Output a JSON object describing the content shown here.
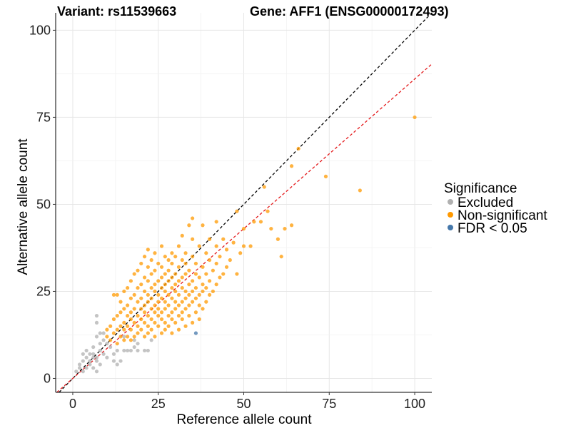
{
  "titles": {
    "left": "Variant: rs11539663",
    "right": "Gene: AFF1 (ENSG00000172493)"
  },
  "legend": {
    "title": "Significance",
    "items": [
      {
        "label": "Excluded",
        "color": "#b0b0b0"
      },
      {
        "label": "Non-significant",
        "color": "#ff9900"
      },
      {
        "label": "FDR < 0.05",
        "color": "#4477aa"
      }
    ]
  },
  "chart_data": {
    "type": "scatter",
    "xlabel": "Reference allele count",
    "ylabel": "Alternative allele count",
    "xlim": [
      -5,
      105
    ],
    "ylim": [
      -4,
      105
    ],
    "xticks": [
      0,
      25,
      50,
      75,
      100
    ],
    "yticks": [
      0,
      25,
      50,
      75,
      100
    ],
    "grid": true,
    "legend_position": "right",
    "reference_lines": [
      {
        "name": "",
        "slope": 1,
        "intercept": 0,
        "color": "#000000",
        "dash": "dashed"
      },
      {
        "name": "",
        "slope": 0.86,
        "intercept": 0,
        "color": "#e41a1c",
        "dash": "dashed"
      }
    ],
    "series": [
      {
        "name": "Excluded",
        "color": "#b0b0b0",
        "points": [
          [
            1,
            2
          ],
          [
            2,
            3
          ],
          [
            2,
            4
          ],
          [
            3,
            2
          ],
          [
            3,
            5
          ],
          [
            3,
            7
          ],
          [
            4,
            3
          ],
          [
            4,
            6
          ],
          [
            4,
            8
          ],
          [
            5,
            4
          ],
          [
            5,
            5
          ],
          [
            5,
            7
          ],
          [
            6,
            3
          ],
          [
            6,
            6
          ],
          [
            6,
            7
          ],
          [
            6,
            9
          ],
          [
            7,
            2
          ],
          [
            7,
            5
          ],
          [
            7,
            6
          ],
          [
            7,
            12
          ],
          [
            7,
            16
          ],
          [
            7,
            18
          ],
          [
            8,
            4
          ],
          [
            8,
            8
          ],
          [
            8,
            10
          ],
          [
            8,
            13
          ],
          [
            9,
            7
          ],
          [
            9,
            11
          ],
          [
            9,
            13
          ],
          [
            10,
            6
          ],
          [
            10,
            10
          ],
          [
            11,
            9
          ],
          [
            12,
            5
          ],
          [
            12,
            7
          ],
          [
            13,
            4
          ],
          [
            13,
            8
          ],
          [
            14,
            5
          ],
          [
            15,
            8
          ],
          [
            15,
            12
          ],
          [
            16,
            8
          ],
          [
            17,
            8
          ],
          [
            18,
            9
          ],
          [
            18,
            11
          ],
          [
            19,
            8
          ],
          [
            19,
            10
          ],
          [
            21,
            8
          ],
          [
            22,
            8
          ],
          [
            23,
            11
          ]
        ]
      },
      {
        "name": "Non-significant",
        "color": "#ff9900",
        "points": [
          [
            10,
            12
          ],
          [
            10,
            14
          ],
          [
            11,
            11
          ],
          [
            11,
            15
          ],
          [
            12,
            13
          ],
          [
            12,
            17
          ],
          [
            12,
            24
          ],
          [
            13,
            10
          ],
          [
            13,
            14
          ],
          [
            13,
            18
          ],
          [
            13,
            24
          ],
          [
            14,
            12
          ],
          [
            14,
            15
          ],
          [
            14,
            19
          ],
          [
            14,
            22
          ],
          [
            15,
            11
          ],
          [
            15,
            14
          ],
          [
            15,
            16
          ],
          [
            15,
            20
          ],
          [
            15,
            25
          ],
          [
            16,
            12
          ],
          [
            16,
            15
          ],
          [
            16,
            18
          ],
          [
            16,
            21
          ],
          [
            16,
            26
          ],
          [
            17,
            11
          ],
          [
            17,
            14
          ],
          [
            17,
            17
          ],
          [
            17,
            19
          ],
          [
            17,
            23
          ],
          [
            17,
            28
          ],
          [
            18,
            12
          ],
          [
            18,
            16
          ],
          [
            18,
            20
          ],
          [
            18,
            24
          ],
          [
            18,
            30
          ],
          [
            19,
            13
          ],
          [
            19,
            15
          ],
          [
            19,
            18
          ],
          [
            19,
            22
          ],
          [
            19,
            26
          ],
          [
            19,
            31
          ],
          [
            20,
            14
          ],
          [
            20,
            17
          ],
          [
            20,
            20
          ],
          [
            20,
            23
          ],
          [
            20,
            27
          ],
          [
            20,
            33
          ],
          [
            21,
            12
          ],
          [
            21,
            16
          ],
          [
            21,
            19
          ],
          [
            21,
            21
          ],
          [
            21,
            25
          ],
          [
            21,
            29
          ],
          [
            21,
            35
          ],
          [
            22,
            13
          ],
          [
            22,
            15
          ],
          [
            22,
            18
          ],
          [
            22,
            22
          ],
          [
            22,
            24
          ],
          [
            22,
            28
          ],
          [
            22,
            32
          ],
          [
            22,
            37
          ],
          [
            23,
            14
          ],
          [
            23,
            17
          ],
          [
            23,
            20
          ],
          [
            23,
            23
          ],
          [
            23,
            26
          ],
          [
            23,
            30
          ],
          [
            23,
            34
          ],
          [
            24,
            12
          ],
          [
            24,
            16
          ],
          [
            24,
            19
          ],
          [
            24,
            21
          ],
          [
            24,
            25
          ],
          [
            24,
            27
          ],
          [
            24,
            31
          ],
          [
            24,
            36
          ],
          [
            25,
            15
          ],
          [
            25,
            18
          ],
          [
            25,
            20
          ],
          [
            25,
            22
          ],
          [
            25,
            24
          ],
          [
            25,
            28
          ],
          [
            25,
            33
          ],
          [
            26,
            13
          ],
          [
            26,
            17
          ],
          [
            26,
            19
          ],
          [
            26,
            23
          ],
          [
            26,
            26
          ],
          [
            26,
            29
          ],
          [
            26,
            32
          ],
          [
            26,
            38
          ],
          [
            27,
            14
          ],
          [
            27,
            16
          ],
          [
            27,
            20
          ],
          [
            27,
            22
          ],
          [
            27,
            25
          ],
          [
            27,
            27
          ],
          [
            27,
            30
          ],
          [
            27,
            35
          ],
          [
            28,
            15
          ],
          [
            28,
            18
          ],
          [
            28,
            21
          ],
          [
            28,
            24
          ],
          [
            28,
            28
          ],
          [
            28,
            31
          ],
          [
            28,
            34
          ],
          [
            29,
            13
          ],
          [
            29,
            17
          ],
          [
            29,
            19
          ],
          [
            29,
            23
          ],
          [
            29,
            26
          ],
          [
            29,
            29
          ],
          [
            29,
            33
          ],
          [
            29,
            36
          ],
          [
            30,
            16
          ],
          [
            30,
            20
          ],
          [
            30,
            22
          ],
          [
            30,
            25
          ],
          [
            30,
            27
          ],
          [
            30,
            30
          ],
          [
            30,
            35
          ],
          [
            31,
            14
          ],
          [
            31,
            18
          ],
          [
            31,
            21
          ],
          [
            31,
            24
          ],
          [
            31,
            28
          ],
          [
            31,
            32
          ],
          [
            31,
            38
          ],
          [
            32,
            17
          ],
          [
            32,
            19
          ],
          [
            32,
            22
          ],
          [
            32,
            26
          ],
          [
            32,
            29
          ],
          [
            32,
            34
          ],
          [
            32,
            41
          ],
          [
            33,
            15
          ],
          [
            33,
            20
          ],
          [
            33,
            23
          ],
          [
            33,
            25
          ],
          [
            33,
            30
          ],
          [
            33,
            33
          ],
          [
            33,
            36
          ],
          [
            34,
            18
          ],
          [
            34,
            21
          ],
          [
            34,
            24
          ],
          [
            34,
            27
          ],
          [
            34,
            31
          ],
          [
            34,
            44
          ],
          [
            35,
            16
          ],
          [
            35,
            22
          ],
          [
            35,
            25
          ],
          [
            35,
            28
          ],
          [
            35,
            35
          ],
          [
            35,
            40
          ],
          [
            35,
            46
          ],
          [
            36,
            19
          ],
          [
            36,
            23
          ],
          [
            36,
            26
          ],
          [
            36,
            30
          ],
          [
            36,
            33
          ],
          [
            37,
            17
          ],
          [
            37,
            21
          ],
          [
            37,
            24
          ],
          [
            37,
            29
          ],
          [
            37,
            38
          ],
          [
            38,
            20
          ],
          [
            38,
            25
          ],
          [
            38,
            27
          ],
          [
            38,
            32
          ],
          [
            38,
            44
          ],
          [
            39,
            22
          ],
          [
            39,
            26
          ],
          [
            39,
            30
          ],
          [
            39,
            36
          ],
          [
            40,
            24
          ],
          [
            40,
            28
          ],
          [
            40,
            34
          ],
          [
            40,
            40
          ],
          [
            41,
            25
          ],
          [
            41,
            31
          ],
          [
            42,
            27
          ],
          [
            42,
            33
          ],
          [
            42,
            38
          ],
          [
            42,
            45
          ],
          [
            43,
            29
          ],
          [
            43,
            35
          ],
          [
            44,
            30
          ],
          [
            44,
            40
          ],
          [
            45,
            32
          ],
          [
            45,
            37
          ],
          [
            46,
            34
          ],
          [
            47,
            39
          ],
          [
            48,
            48
          ],
          [
            48,
            30
          ],
          [
            49,
            36
          ],
          [
            50,
            38
          ],
          [
            50,
            43
          ],
          [
            52,
            38
          ],
          [
            53,
            45
          ],
          [
            55,
            45
          ],
          [
            56,
            55
          ],
          [
            57,
            48
          ],
          [
            58,
            43
          ],
          [
            60,
            40
          ],
          [
            61,
            35
          ],
          [
            62,
            43
          ],
          [
            64,
            61
          ],
          [
            64,
            44
          ],
          [
            66,
            66
          ],
          [
            74,
            58
          ],
          [
            84,
            54
          ],
          [
            100,
            75
          ]
        ]
      },
      {
        "name": "FDR < 0.05",
        "color": "#4477aa",
        "points": [
          [
            36,
            13
          ]
        ]
      }
    ]
  }
}
